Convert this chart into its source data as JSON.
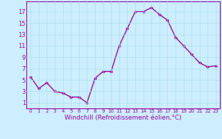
{
  "x": [
    0,
    1,
    2,
    3,
    4,
    5,
    6,
    7,
    8,
    9,
    10,
    11,
    12,
    13,
    14,
    15,
    16,
    17,
    18,
    19,
    20,
    21,
    22,
    23
  ],
  "y": [
    5.5,
    3.5,
    4.5,
    3.0,
    2.7,
    2.0,
    2.0,
    1.0,
    5.3,
    6.5,
    6.5,
    11.0,
    14.0,
    17.0,
    17.0,
    17.7,
    16.5,
    15.5,
    12.5,
    11.0,
    9.5,
    8.0,
    7.3,
    7.5
  ],
  "line_color": "#990099",
  "marker": "D",
  "markersize": 2.0,
  "linewidth": 1.0,
  "bg_color": "#cceeff",
  "grid_color": "#aaddee",
  "xlabel": "Windchill (Refroidissement éolien,°C)",
  "xlabel_fontsize": 6.5,
  "ylabel_ticks": [
    1,
    3,
    5,
    7,
    9,
    11,
    13,
    15,
    17
  ],
  "xlim": [
    -0.5,
    23.5
  ],
  "ylim": [
    0,
    18.8
  ],
  "ytick_fontsize": 6.0,
  "xtick_fontsize": 5.0
}
